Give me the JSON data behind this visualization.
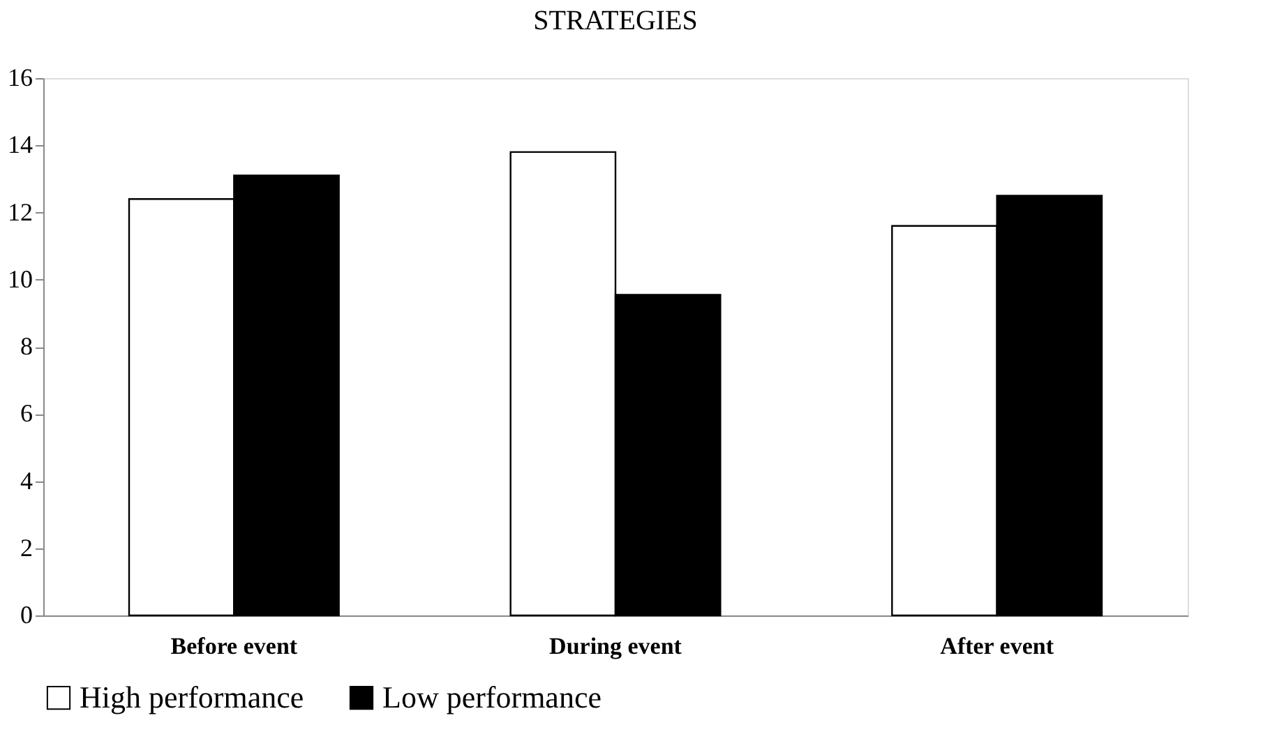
{
  "chart_data": {
    "type": "bar",
    "title": "STRATEGIES",
    "categories": [
      "Before event",
      "During event",
      "After event"
    ],
    "series": [
      {
        "name": "High performance",
        "color": "#ffffff",
        "values": [
          12.4,
          13.8,
          11.6
        ]
      },
      {
        "name": "Low performance",
        "color": "#000000",
        "values": [
          13.1,
          9.55,
          12.5
        ]
      }
    ],
    "ylim": [
      0,
      16
    ],
    "yticks": [
      0,
      2,
      4,
      6,
      8,
      10,
      12,
      14,
      16
    ],
    "grid": false,
    "legend": "bottom"
  }
}
